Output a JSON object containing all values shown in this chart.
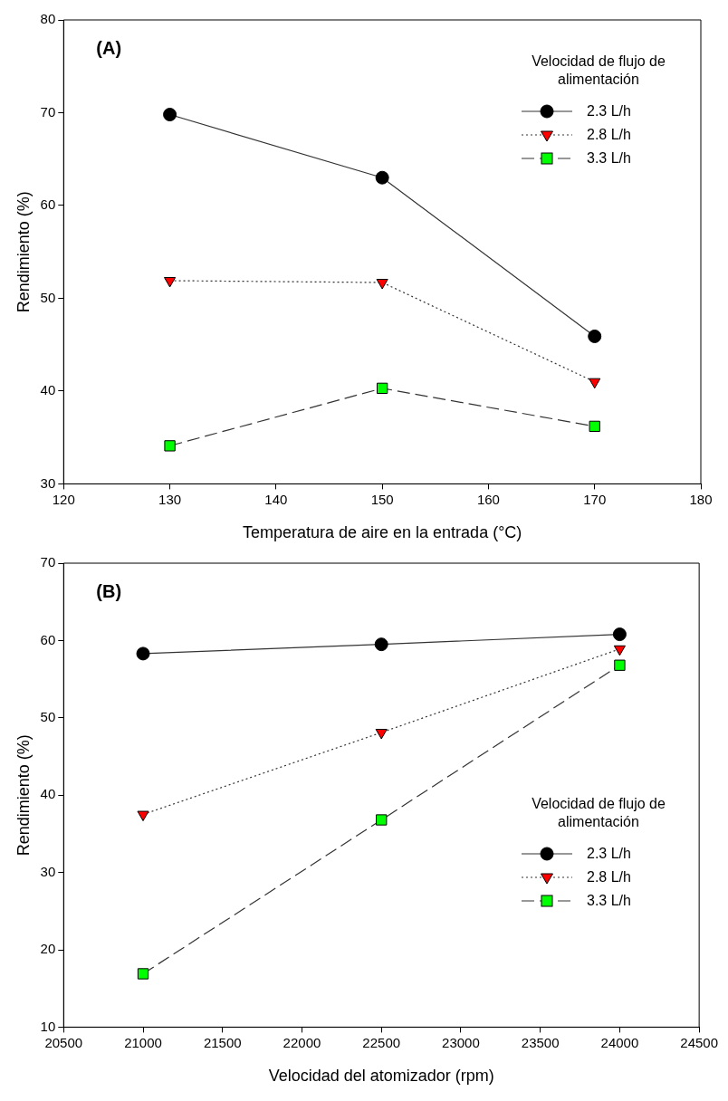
{
  "chart_data": [
    {
      "type": "line",
      "title": "(A)",
      "xlabel": "Temperatura de aire en la entrada (°C)",
      "ylabel": "Rendimiento (%)",
      "legend_title": "Velocidad de flujo de alimentación",
      "legend": "top right",
      "x": [
        130,
        150,
        170
      ],
      "xlim": [
        120,
        180
      ],
      "xticks": [
        120,
        130,
        140,
        150,
        160,
        170,
        180
      ],
      "ylim": [
        30,
        80
      ],
      "yticks": [
        30,
        40,
        50,
        60,
        70,
        80
      ],
      "series": [
        {
          "name": "2.3 L/h",
          "color": "#000000",
          "marker": "circle",
          "line_style": "solid",
          "values": [
            69.8,
            63.0,
            45.9
          ]
        },
        {
          "name": "2.8 L/h",
          "color": "#ff0000",
          "marker": "triangle",
          "line_style": "dotted",
          "values": [
            51.9,
            51.7,
            41.0
          ]
        },
        {
          "name": "3.3 L/h",
          "color": "#00ff00",
          "marker": "square",
          "line_style": "dashed",
          "values": [
            34.1,
            40.3,
            36.2
          ]
        }
      ]
    },
    {
      "type": "line",
      "title": "(B)",
      "xlabel": "Velocidad del atomizador (rpm)",
      "ylabel": "Rendimiento (%)",
      "legend_title": "Velocidad de flujo de alimentación",
      "legend": "bottom right",
      "x": [
        21000,
        22500,
        24000
      ],
      "xlim": [
        20500,
        24500
      ],
      "xticks": [
        20500,
        21000,
        21500,
        22000,
        22500,
        23000,
        23500,
        24000,
        24500
      ],
      "ylim": [
        10,
        70
      ],
      "yticks": [
        10,
        20,
        30,
        40,
        50,
        60,
        70
      ],
      "series": [
        {
          "name": "2.3 L/h",
          "color": "#000000",
          "marker": "circle",
          "line_style": "solid",
          "values": [
            58.3,
            59.5,
            60.8
          ]
        },
        {
          "name": "2.8 L/h",
          "color": "#ff0000",
          "marker": "triangle",
          "line_style": "dotted",
          "values": [
            37.5,
            48.1,
            58.9
          ]
        },
        {
          "name": "3.3 L/h",
          "color": "#00ff00",
          "marker": "square",
          "line_style": "dashed",
          "values": [
            16.9,
            36.8,
            56.8
          ]
        }
      ]
    }
  ]
}
